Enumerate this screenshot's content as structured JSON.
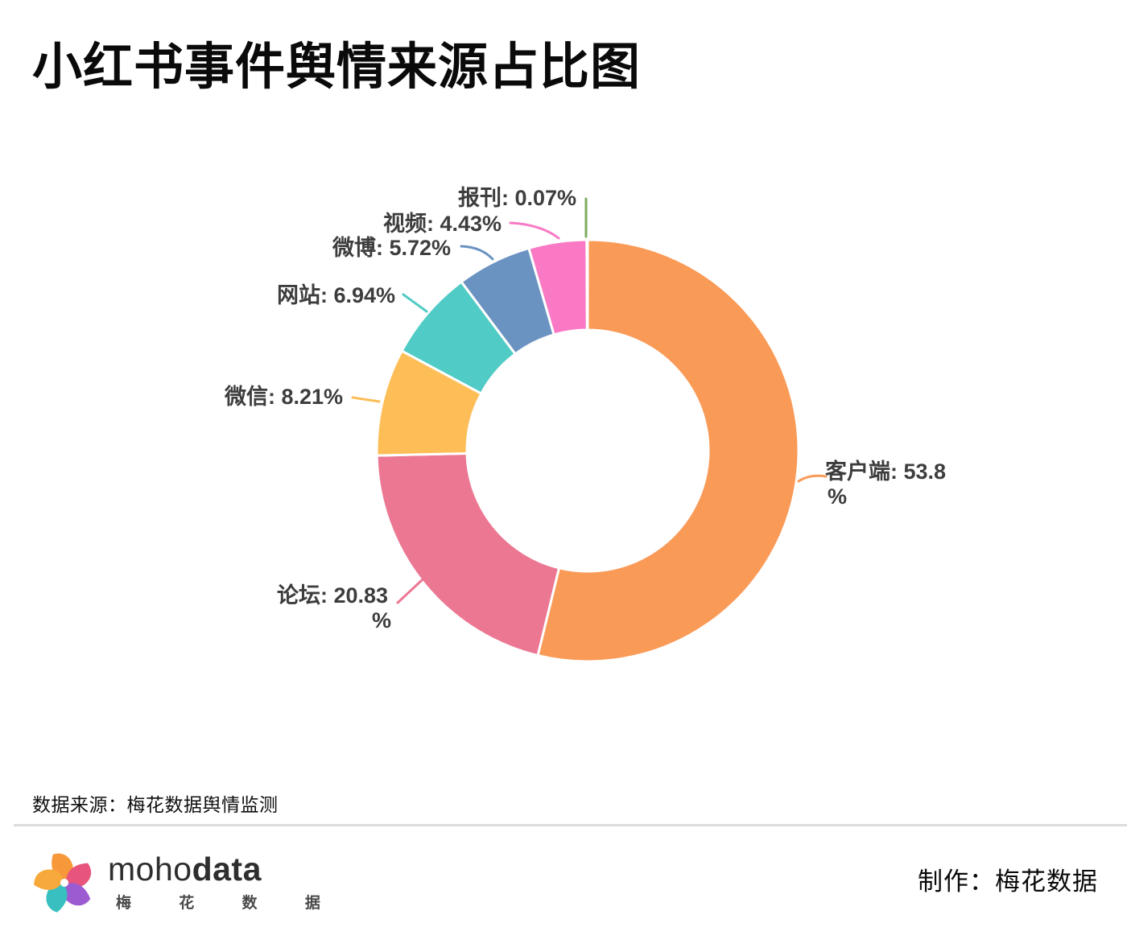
{
  "page": {
    "title": "小红书事件舆情来源占比图",
    "source_note": "数据来源：梅花数据舆情监测",
    "credit": "制作：梅花数据",
    "logo": {
      "wordmark_regular": "moho",
      "wordmark_bold": "data",
      "subtitle": "梅 花 数 据"
    }
  },
  "chart_data": {
    "type": "pie",
    "subtype": "donut",
    "title": "小红书事件舆情来源占比图",
    "unit": "%",
    "start_angle_deg": 0,
    "direction": "clockwise",
    "inner_radius_ratio": 0.57,
    "legend": "none",
    "label_text_color": "#3d3d3d",
    "slice_border_color": "#ffffff",
    "categories": [
      "客户端",
      "论坛",
      "微信",
      "网站",
      "微博",
      "视频",
      "报刊"
    ],
    "values": [
      53.8,
      20.83,
      8.21,
      6.94,
      5.72,
      4.43,
      0.07
    ],
    "slices": [
      {
        "name": "客户端",
        "value": 53.8,
        "color": "#FA9A57",
        "label_lines": [
          "客户端: 53.8",
          "%"
        ]
      },
      {
        "name": "论坛",
        "value": 20.83,
        "color": "#EC7793",
        "label_lines": [
          "论坛: 20.83",
          "%"
        ]
      },
      {
        "name": "微信",
        "value": 8.21,
        "color": "#FDBE58",
        "label_lines": [
          "微信: 8.21%"
        ]
      },
      {
        "name": "网站",
        "value": 6.94,
        "color": "#50CBC5",
        "label_lines": [
          "网站: 6.94%"
        ]
      },
      {
        "name": "微博",
        "value": 5.72,
        "color": "#6B93C1",
        "label_lines": [
          "微博: 5.72%"
        ]
      },
      {
        "name": "视频",
        "value": 4.43,
        "color": "#F979C5",
        "label_lines": [
          "视频: 4.43%"
        ]
      },
      {
        "name": "报刊",
        "value": 0.07,
        "color": "#7CAE5C",
        "label_lines": [
          "报刊: 0.07%"
        ]
      }
    ]
  }
}
